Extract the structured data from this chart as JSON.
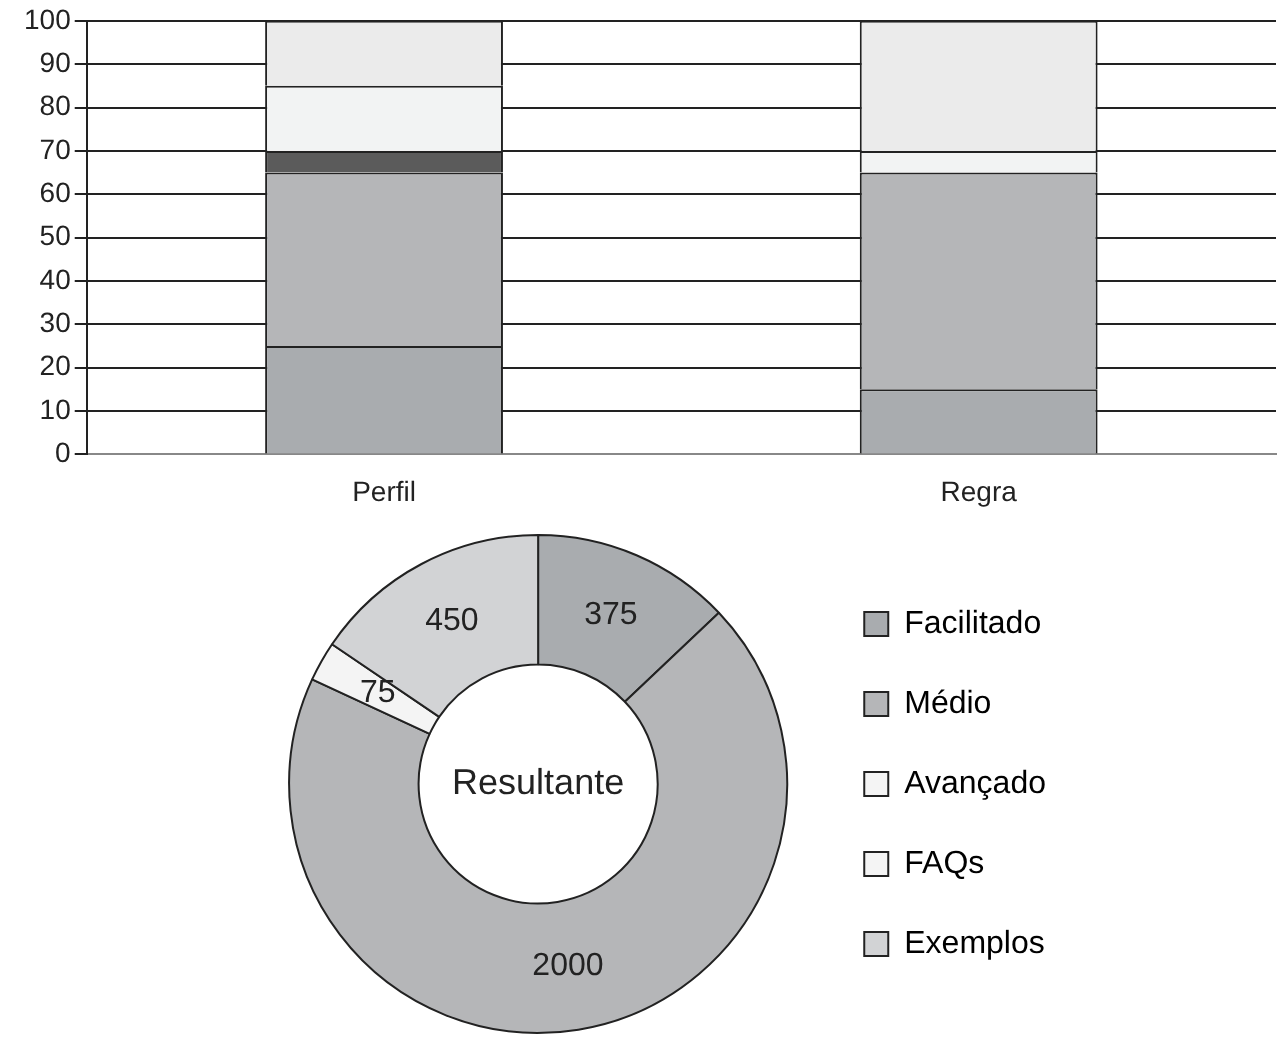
{
  "chart_data": [
    {
      "type": "bar",
      "stacked": true,
      "categories": [
        "Perfil",
        "Regra"
      ],
      "series": [
        {
          "color": "#a9acaf",
          "values": [
            25,
            15
          ]
        },
        {
          "color": "#b5b6b8",
          "values": [
            40,
            50
          ]
        },
        {
          "color": "#5b5b5b",
          "values": [
            5,
            0
          ]
        },
        {
          "color": "#f2f3f3",
          "values": [
            15,
            5
          ]
        },
        {
          "color": "#ebebeb",
          "values": [
            15,
            30
          ]
        }
      ],
      "ylim": [
        0,
        100
      ],
      "yticks": [
        0,
        10,
        20,
        30,
        40,
        50,
        60,
        70,
        80,
        90,
        100
      ],
      "grid": "y",
      "legend": false
    },
    {
      "type": "donut",
      "title": "Resultante",
      "categories": [
        "Facilitado",
        "Médio",
        "Avançado",
        "FAQs",
        "Exemplos"
      ],
      "values": [
        375,
        2000,
        75,
        0,
        450
      ],
      "colors": [
        "#a9acaf",
        "#b5b6b8",
        "#f4f4f4",
        "#f4f4f4",
        "#d2d3d5"
      ],
      "value_labels": [
        "375",
        "2000",
        "75",
        null,
        "450"
      ],
      "legend": "right"
    }
  ]
}
